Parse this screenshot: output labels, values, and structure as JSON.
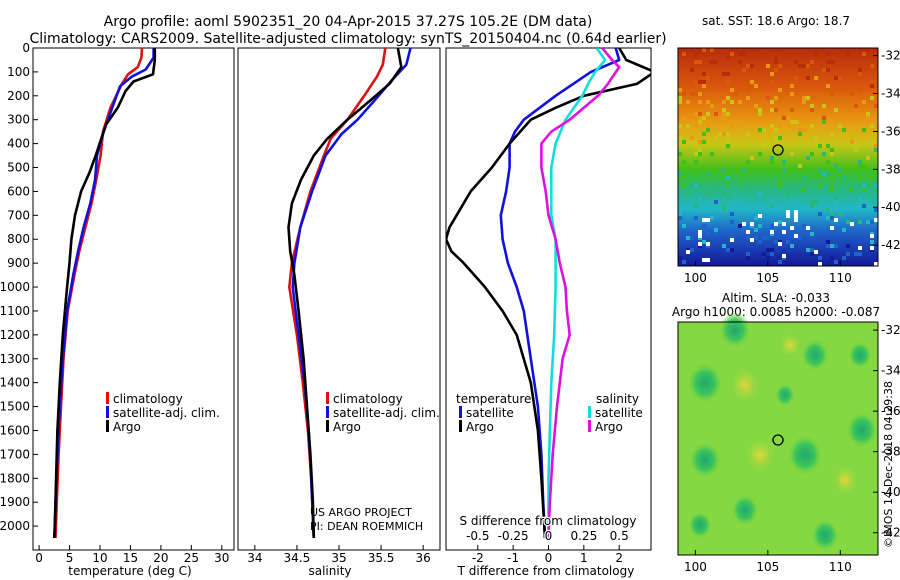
{
  "header": {
    "line1": "Argo profile: aoml 5902351_20 04-Apr-2015 37.27S 105.2E (DM data)",
    "line2": "Climatology: CARS2009. Satellite-adjusted climatology: synTS_20150404.nc (0.64d earlier)"
  },
  "colors": {
    "climatology": "#dd1111",
    "satellite": "#1111dd",
    "argo": "#000000",
    "sat_salinity": "#11dddd",
    "argo_salinity": "#dd11dd"
  },
  "chart_data": [
    {
      "type": "line",
      "name": "temperature",
      "xlabel": "temperature (deg C)",
      "xlim": [
        -1,
        32
      ],
      "ylim": [
        2100,
        0
      ],
      "xticks": [
        0,
        5,
        10,
        15,
        20,
        25,
        30
      ],
      "yticks": [
        0,
        100,
        200,
        300,
        400,
        500,
        600,
        700,
        800,
        900,
        1000,
        1100,
        1200,
        1300,
        1400,
        1500,
        1600,
        1700,
        1800,
        1900,
        2000
      ],
      "legend": [
        "climatology",
        "satellite-adj. clim.",
        "Argo"
      ],
      "series": [
        {
          "name": "climatology",
          "depth": [
            0,
            40,
            80,
            110,
            150,
            250,
            350,
            450,
            550,
            650,
            750,
            850,
            950,
            1100,
            1300,
            1500,
            1700,
            1900,
            2050
          ],
          "values": [
            16.9,
            16.8,
            16.2,
            14.6,
            13.6,
            11.7,
            10.5,
            10.1,
            9.4,
            8.6,
            7.6,
            6.6,
            5.8,
            4.7,
            4.0,
            3.6,
            3.2,
            2.9,
            2.7
          ]
        },
        {
          "name": "satellite-adj. clim.",
          "depth": [
            0,
            40,
            90,
            120,
            160,
            250,
            350,
            450,
            550,
            650,
            750,
            850,
            950,
            1100,
            1300,
            1500,
            1700,
            1900,
            2050
          ],
          "values": [
            18.8,
            18.8,
            17.5,
            15.2,
            13.3,
            12.0,
            10.6,
            9.5,
            9.2,
            8.4,
            7.3,
            6.4,
            5.6,
            4.6,
            3.9,
            3.4,
            3.0,
            2.7,
            2.5
          ]
        },
        {
          "name": "Argo",
          "depth": [
            0,
            50,
            110,
            140,
            180,
            250,
            320,
            380,
            450,
            520,
            600,
            700,
            800,
            900,
            1000,
            1200,
            1400,
            1600,
            1800,
            2000,
            2050
          ],
          "values": [
            19.0,
            19.0,
            18.7,
            15.5,
            14.2,
            12.9,
            11.0,
            10.2,
            9.3,
            8.3,
            6.9,
            5.9,
            5.3,
            5.0,
            4.6,
            3.9,
            3.4,
            3.0,
            2.8,
            2.6,
            2.5
          ]
        }
      ]
    },
    {
      "type": "line",
      "name": "salinity",
      "xlabel": "salinity",
      "xlim": [
        33.8,
        36.2
      ],
      "ylim": [
        2100,
        0
      ],
      "xticks": [
        34,
        34.5,
        35,
        35.5,
        36
      ],
      "legend": [
        "climatology",
        "satellite-adj. clim.",
        "Argo"
      ],
      "series": [
        {
          "name": "climatology",
          "depth": [
            0,
            70,
            120,
            200,
            300,
            380,
            450,
            600,
            750,
            900,
            1000,
            1200,
            1400,
            1600,
            1800,
            2050
          ],
          "values": [
            35.55,
            35.52,
            35.45,
            35.3,
            35.1,
            34.9,
            34.82,
            34.66,
            34.54,
            34.44,
            34.41,
            34.5,
            34.57,
            34.63,
            34.67,
            34.7
          ]
        },
        {
          "name": "satellite-adj. clim.",
          "depth": [
            0,
            70,
            130,
            220,
            300,
            360,
            450,
            600,
            750,
            900,
            1000,
            1200,
            1400,
            1600,
            1800,
            2050
          ],
          "values": [
            35.85,
            35.8,
            35.64,
            35.42,
            35.22,
            35.03,
            34.84,
            34.68,
            34.54,
            34.47,
            34.45,
            34.52,
            34.59,
            34.64,
            34.67,
            34.7
          ]
        },
        {
          "name": "Argo",
          "depth": [
            0,
            80,
            150,
            220,
            300,
            380,
            450,
            550,
            650,
            750,
            850,
            950,
            1100,
            1300,
            1500,
            1700,
            1900,
            2050
          ],
          "values": [
            35.7,
            35.74,
            35.6,
            35.37,
            35.1,
            34.86,
            34.7,
            34.55,
            34.44,
            34.4,
            34.42,
            34.47,
            34.52,
            34.58,
            34.62,
            34.66,
            34.69,
            34.7
          ]
        }
      ]
    },
    {
      "type": "line",
      "name": "difference from climatology",
      "xlabel": "T difference from climatology",
      "top_label": "S difference from climatology",
      "xlim": [
        -2.9,
        2.9
      ],
      "ylim": [
        2100,
        0
      ],
      "xticks": [
        -2,
        -1,
        0,
        1,
        2
      ],
      "sticks": [
        "-0.5",
        "-0.25",
        "0",
        "0.25",
        "0.5"
      ],
      "legend_titles": [
        "temperature",
        "salinity"
      ],
      "legend": [
        "satellite",
        "Argo",
        "satellite",
        "Argo"
      ],
      "series": [
        {
          "name": "T satellite",
          "depth": [
            0,
            50,
            100,
            150,
            200,
            300,
            350,
            400,
            500,
            600,
            700,
            800,
            900,
            1000,
            1100,
            1300,
            1500,
            1700,
            1900,
            2050
          ],
          "values": [
            1.9,
            2.0,
            1.2,
            0.7,
            0.2,
            -0.7,
            -0.95,
            -1.1,
            -1.1,
            -1.2,
            -1.35,
            -1.3,
            -1.15,
            -0.9,
            -0.7,
            -0.5,
            -0.3,
            -0.2,
            -0.15,
            -0.1
          ]
        },
        {
          "name": "T Argo",
          "depth": [
            0,
            50,
            100,
            150,
            200,
            250,
            300,
            400,
            500,
            600,
            700,
            750,
            800,
            850,
            900,
            1000,
            1100,
            1200,
            1400,
            1600,
            1800,
            2050
          ],
          "values": [
            2.0,
            2.2,
            3.0,
            2.5,
            1.0,
            0.2,
            -0.5,
            -1.1,
            -1.6,
            -2.2,
            -2.6,
            -2.8,
            -2.9,
            -2.75,
            -2.4,
            -1.8,
            -1.3,
            -0.9,
            -0.5,
            -0.3,
            -0.2,
            -0.1
          ]
        },
        {
          "name": "S satellite",
          "depth": [
            0,
            50,
            100,
            150,
            200,
            300,
            400,
            500,
            600,
            700,
            800,
            900,
            1000,
            1200,
            1400,
            1600,
            1800,
            2050
          ],
          "values": [
            0.34,
            0.4,
            0.33,
            0.28,
            0.24,
            0.12,
            0.05,
            0.02,
            0.02,
            0.02,
            0.05,
            0.05,
            0.05,
            0.04,
            0.02,
            0.01,
            0.0,
            0.0
          ]
        },
        {
          "name": "S Argo",
          "depth": [
            0,
            50,
            80,
            150,
            200,
            300,
            350,
            400,
            500,
            600,
            700,
            800,
            900,
            1000,
            1100,
            1200,
            1300,
            1500,
            1700,
            1900,
            2050
          ],
          "values": [
            0.38,
            0.45,
            0.5,
            0.42,
            0.35,
            0.15,
            0.02,
            -0.05,
            -0.05,
            -0.02,
            0.0,
            0.05,
            0.08,
            0.12,
            0.13,
            0.15,
            0.1,
            0.06,
            0.03,
            0.01,
            0.0
          ]
        }
      ]
    }
  ],
  "maps": {
    "sst_title": "sat. SST: 18.6 Argo: 18.7",
    "sla_title1": "Altim. SLA: -0.033",
    "sla_title2": "Argo h1000: 0.0085 h2000: -0.087",
    "lat_ticks": [
      "-32",
      "-34",
      "-36",
      "-38",
      "-40",
      "-42"
    ],
    "lon_ticks": [
      "100",
      "105",
      "110"
    ],
    "argo_lon": 105.2,
    "argo_lat": -37.27
  },
  "credits": {
    "project": "US ARGO PROJECT",
    "pi": "PI: DEAN ROEMMICH",
    "imos": "©IMOS 14-Dec-2018 04:29:38"
  }
}
